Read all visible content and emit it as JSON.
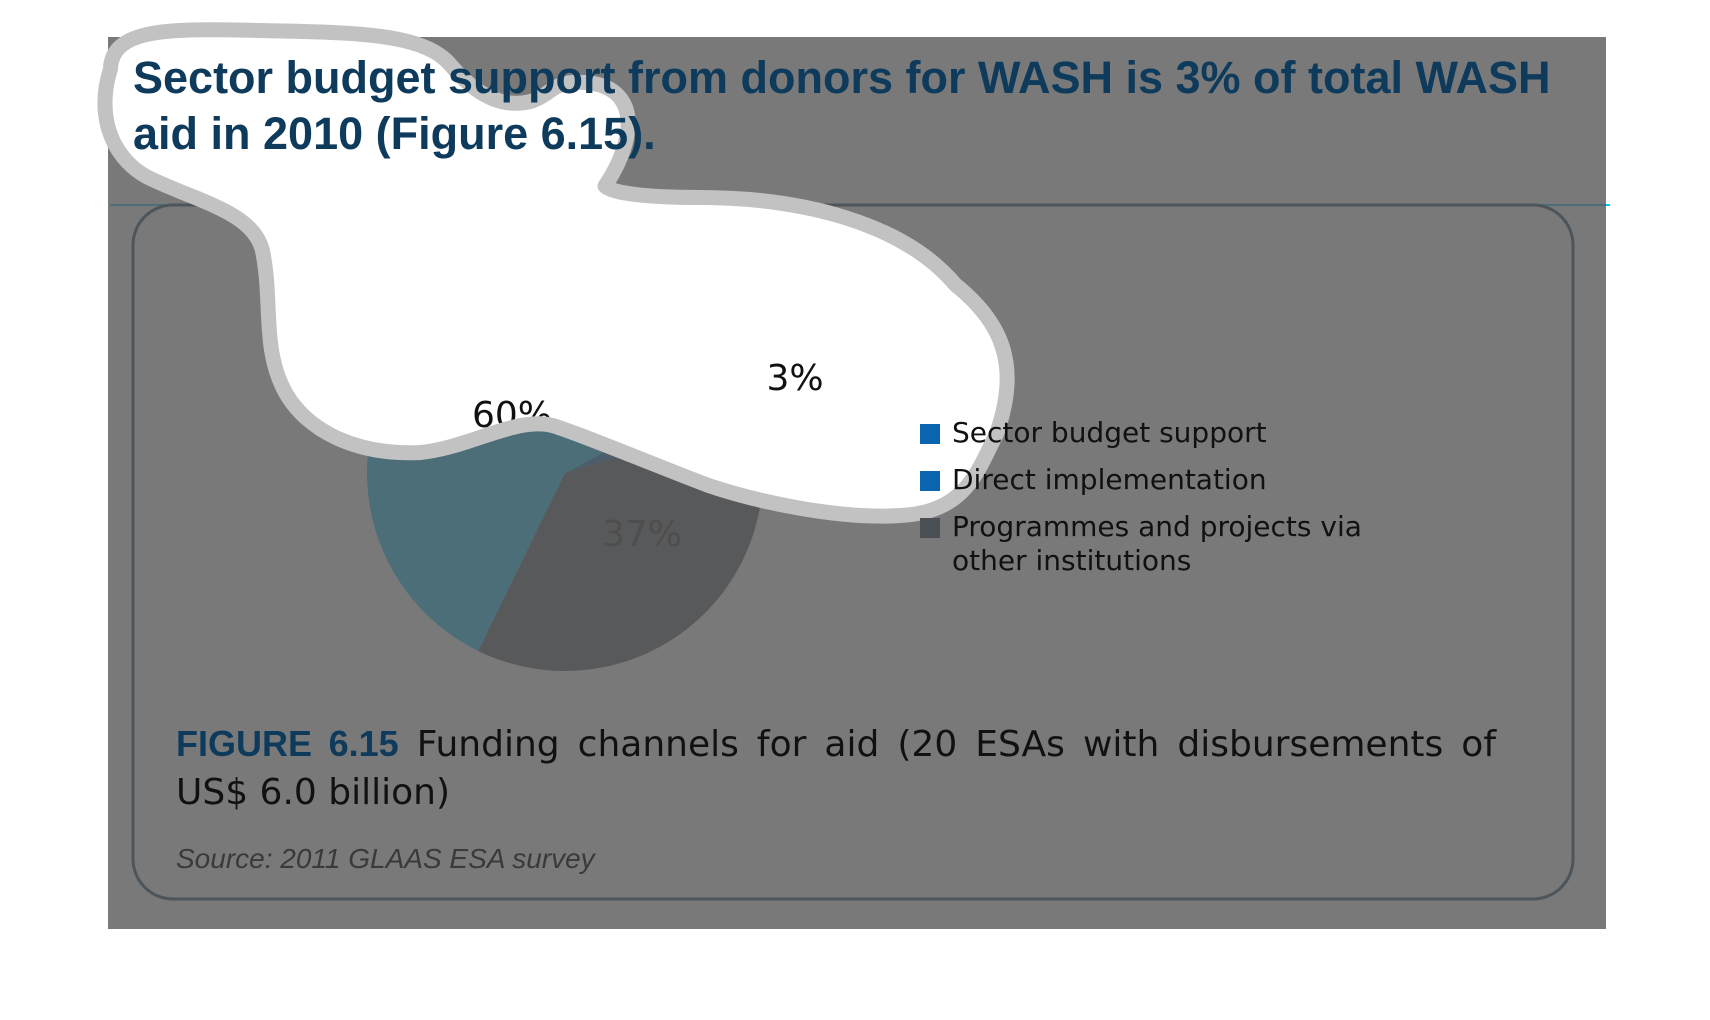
{
  "heading": "Sector budget support from donors for WASH is 3% of total WASH aid in 2010 (Figure 6.15).",
  "figure": {
    "number": "FIGURE 6.15",
    "caption": "Funding channels for aid (20 ESAs with disbursements of US$ 6.0 billion)",
    "source": "Source: 2011 GLAAS ESA survey"
  },
  "colors": {
    "dark_overlay": "#5b5b5b",
    "accent_cyan": "#00c4ff",
    "frame_navy": "#0e3a5c",
    "blob_halo": "#c2c2c2"
  },
  "chart_data": {
    "type": "pie",
    "slices": [
      {
        "label": "Sector budget support",
        "value": 3,
        "label_text": "3%",
        "color": "#0a64b0"
      },
      {
        "label": "Direct implementation",
        "value": 60,
        "label_text": "60%",
        "color": "#00c4ff"
      },
      {
        "label": "Programmes and projects via other institutions",
        "value": 37,
        "label_text": "37%",
        "color": "#4a4f56"
      }
    ],
    "legend": [
      {
        "label": "Sector budget support",
        "color": "#0a64b0"
      },
      {
        "label": "Direct implementation",
        "color": "#0a64b0"
      },
      {
        "label": "Programmes and projects via other institutions",
        "color": "#4a4f56"
      }
    ],
    "legend_position": "right"
  }
}
